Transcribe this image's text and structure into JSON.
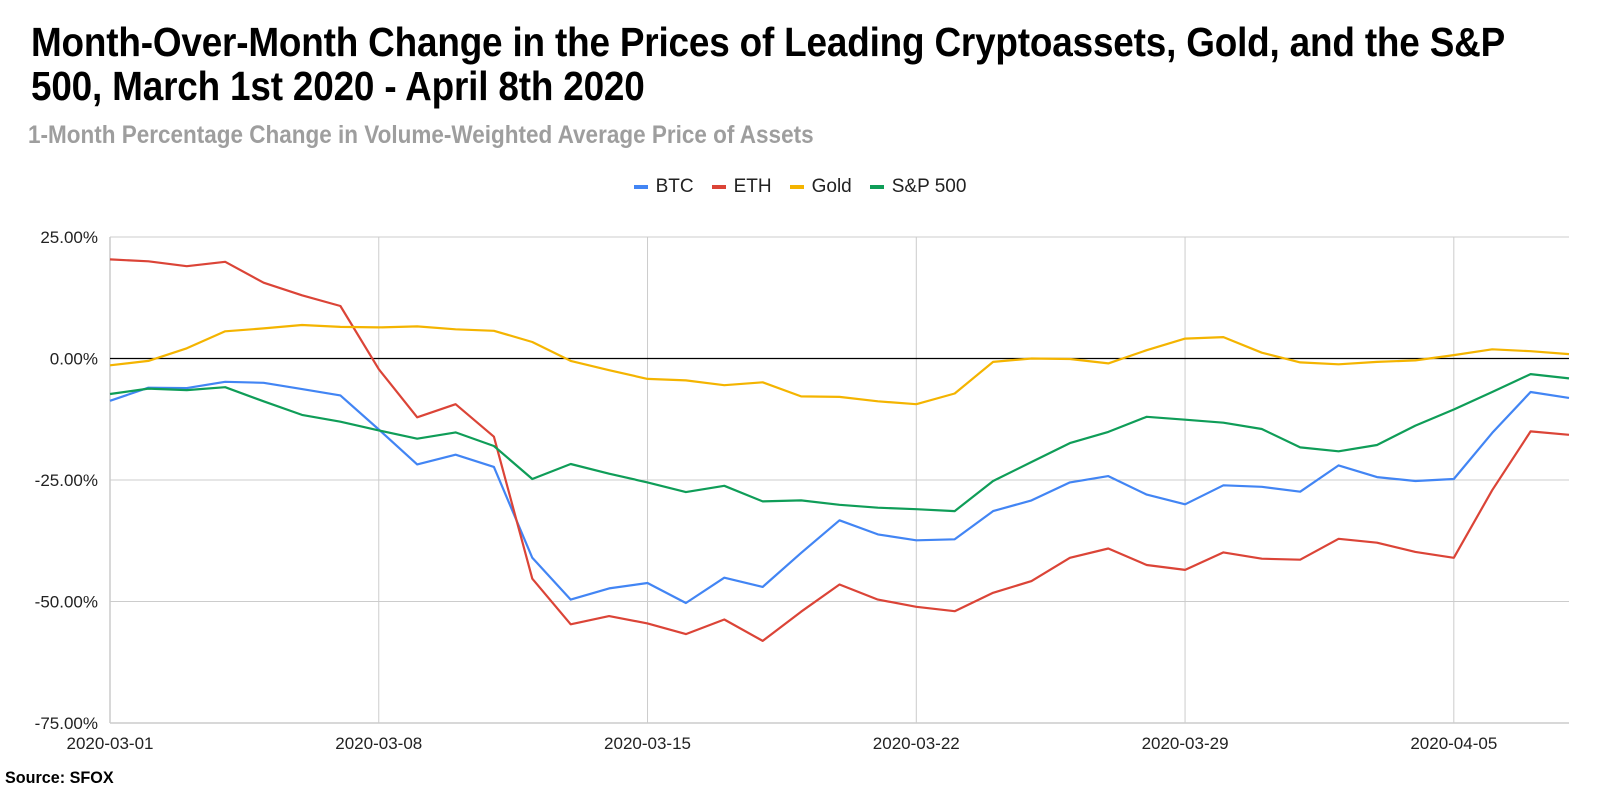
{
  "chart_data": {
    "type": "line",
    "title": "Month-Over-Month Change in the Prices of Leading Cryptoassets, Gold, and the S&P 500, March 1st 2020 - April 8th 2020",
    "subtitle": "1-Month Percentage Change in Volume-Weighted Average Price of Assets",
    "source": "Source: SFOX",
    "xlabel": "",
    "ylabel": "",
    "x": [
      "2020-03-01",
      "2020-03-02",
      "2020-03-03",
      "2020-03-04",
      "2020-03-05",
      "2020-03-06",
      "2020-03-07",
      "2020-03-08",
      "2020-03-09",
      "2020-03-10",
      "2020-03-11",
      "2020-03-12",
      "2020-03-13",
      "2020-03-14",
      "2020-03-15",
      "2020-03-16",
      "2020-03-17",
      "2020-03-18",
      "2020-03-19",
      "2020-03-20",
      "2020-03-21",
      "2020-03-22",
      "2020-03-23",
      "2020-03-24",
      "2020-03-25",
      "2020-03-26",
      "2020-03-27",
      "2020-03-28",
      "2020-03-29",
      "2020-03-30",
      "2020-03-31",
      "2020-04-01",
      "2020-04-02",
      "2020-04-03",
      "2020-04-04",
      "2020-04-05",
      "2020-04-06",
      "2020-04-07",
      "2020-04-08"
    ],
    "x_ticks": [
      "2020-03-01",
      "2020-03-08",
      "2020-03-15",
      "2020-03-22",
      "2020-03-29",
      "2020-04-05"
    ],
    "y_ticks": [
      25,
      0,
      -25,
      -50,
      -75
    ],
    "y_tick_labels": [
      "25.00%",
      "0.00%",
      "-25.00%",
      "-50.00%",
      "-75.00%"
    ],
    "ylim": [
      -75,
      25
    ],
    "grid": true,
    "legend_position": "top-center",
    "series": [
      {
        "name": "BTC",
        "color": "#4285f4",
        "values": [
          -8.7,
          -6.0,
          -6.1,
          -4.8,
          -5.0,
          -6.3,
          -7.6,
          -14.6,
          -21.8,
          -19.8,
          -22.3,
          -41.0,
          -49.6,
          -47.3,
          -46.2,
          -50.3,
          -45.1,
          -47.0,
          -40.0,
          -33.3,
          -36.2,
          -37.4,
          -37.2,
          -31.4,
          -29.2,
          -25.5,
          -24.2,
          -28.0,
          -30.0,
          -26.1,
          -26.4,
          -27.4,
          -22.0,
          -24.4,
          -25.2,
          -24.8,
          -15.3,
          -6.9,
          -8.1
        ]
      },
      {
        "name": "ETH",
        "color": "#db4437",
        "values": [
          20.4,
          20.0,
          19.0,
          19.9,
          15.6,
          13.0,
          10.8,
          -2.2,
          -12.1,
          -9.4,
          -16.1,
          -45.3,
          -54.7,
          -53.0,
          -54.5,
          -56.7,
          -53.7,
          -58.1,
          -52.1,
          -46.5,
          -49.6,
          -51.1,
          -52.0,
          -48.2,
          -45.8,
          -41.0,
          -39.1,
          -42.5,
          -43.5,
          -39.9,
          -41.2,
          -41.4,
          -37.1,
          -37.9,
          -39.8,
          -41.0,
          -27.1,
          -15.0,
          -15.7
        ]
      },
      {
        "name": "Gold",
        "color": "#f4b400",
        "values": [
          -1.4,
          -0.5,
          2.1,
          5.6,
          6.2,
          6.9,
          6.5,
          6.4,
          6.6,
          6.0,
          5.7,
          3.4,
          -0.5,
          -2.4,
          -4.2,
          -4.5,
          -5.5,
          -4.9,
          -7.8,
          -7.9,
          -8.8,
          -9.4,
          -7.2,
          -0.7,
          0.0,
          -0.1,
          -1.0,
          1.7,
          4.1,
          4.4,
          1.2,
          -0.8,
          -1.2,
          -0.7,
          -0.4,
          0.7,
          1.9,
          1.5,
          0.9
        ]
      },
      {
        "name": "S&P 500",
        "color": "#0f9d58",
        "values": [
          -7.3,
          -6.2,
          -6.5,
          -5.9,
          -8.8,
          -11.6,
          -13.0,
          -14.8,
          -16.5,
          -15.2,
          -18.0,
          -24.8,
          -21.7,
          -23.7,
          -25.5,
          -27.5,
          -26.2,
          -29.4,
          -29.2,
          -30.1,
          -30.7,
          -31.0,
          -31.4,
          -25.2,
          -21.3,
          -17.4,
          -15.1,
          -12.0,
          -12.6,
          -13.2,
          -14.5,
          -18.3,
          -19.1,
          -17.8,
          -13.8,
          -10.5,
          -6.9,
          -3.2,
          -4.1
        ]
      }
    ]
  }
}
